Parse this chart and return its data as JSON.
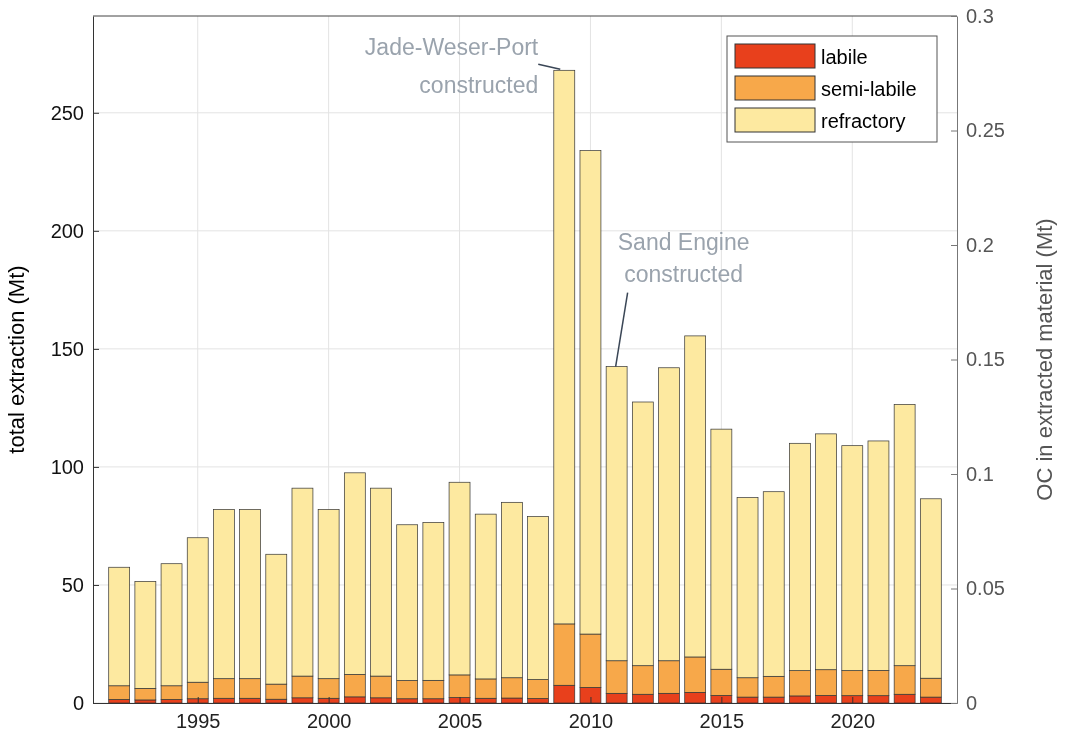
{
  "chart_data": {
    "type": "bar",
    "stacked": true,
    "x": [
      1992,
      1993,
      1994,
      1995,
      1996,
      1997,
      1998,
      1999,
      2000,
      2001,
      2002,
      2003,
      2004,
      2005,
      2006,
      2007,
      2008,
      2009,
      2010,
      2011,
      2012,
      2013,
      2014,
      2015,
      2016,
      2017,
      2018,
      2019,
      2020,
      2021,
      2022,
      2023
    ],
    "series": [
      {
        "name": "labile",
        "color": "#e8401c",
        "values": [
          1.5,
          1.3,
          1.5,
          1.8,
          2.0,
          2.0,
          1.6,
          2.2,
          2.0,
          2.6,
          2.2,
          1.8,
          1.8,
          2.3,
          2.0,
          2.1,
          1.9,
          7.5,
          6.6,
          4.1,
          3.7,
          4.1,
          4.5,
          3.2,
          2.5,
          2.5,
          3.0,
          3.2,
          3.1,
          3.1,
          3.7,
          2.5
        ]
      },
      {
        "name": "semi-labile",
        "color": "#f7a84a",
        "values": [
          5.8,
          4.9,
          5.8,
          7.0,
          8.3,
          8.3,
          6.4,
          9.2,
          8.3,
          9.5,
          9.2,
          7.7,
          7.8,
          9.6,
          8.2,
          8.6,
          8.0,
          26.0,
          22.6,
          13.8,
          12.1,
          13.8,
          15.0,
          11.1,
          8.2,
          8.8,
          10.7,
          10.9,
          10.6,
          10.7,
          12.1,
          8.0
        ]
      },
      {
        "name": "refractory",
        "color": "#fde9a0",
        "values": [
          50.2,
          45.3,
          51.7,
          61.2,
          71.7,
          71.7,
          55.0,
          79.6,
          71.7,
          85.4,
          79.6,
          66.0,
          66.9,
          81.6,
          69.8,
          74.3,
          69.1,
          234.5,
          204.8,
          124.6,
          111.7,
          124.1,
          136.0,
          101.7,
          76.3,
          78.2,
          96.3,
          99.9,
          95.3,
          97.2,
          110.7,
          76.0
        ]
      }
    ],
    "xlim": [
      1991,
      2024
    ],
    "xticks": [
      1995,
      2000,
      2005,
      2010,
      2015,
      2020
    ],
    "ylim": [
      0,
      291
    ],
    "yticks": [
      0,
      50,
      100,
      150,
      200,
      250
    ],
    "y2lim": [
      0,
      0.3
    ],
    "y2ticks": [
      0,
      0.05,
      0.1,
      0.15,
      0.2,
      0.25,
      0.3
    ],
    "ylabel": "total extraction (Mt)",
    "y2label": "OC in extracted material (Mt)",
    "grid": true,
    "legend": "top right",
    "annotations": [
      {
        "text": "Jade-Weser-Port\nconstructed",
        "x": 2009,
        "y": 268
      },
      {
        "text": "Sand Engine\nconstructed",
        "x": 2011,
        "y": 142.5
      }
    ]
  }
}
